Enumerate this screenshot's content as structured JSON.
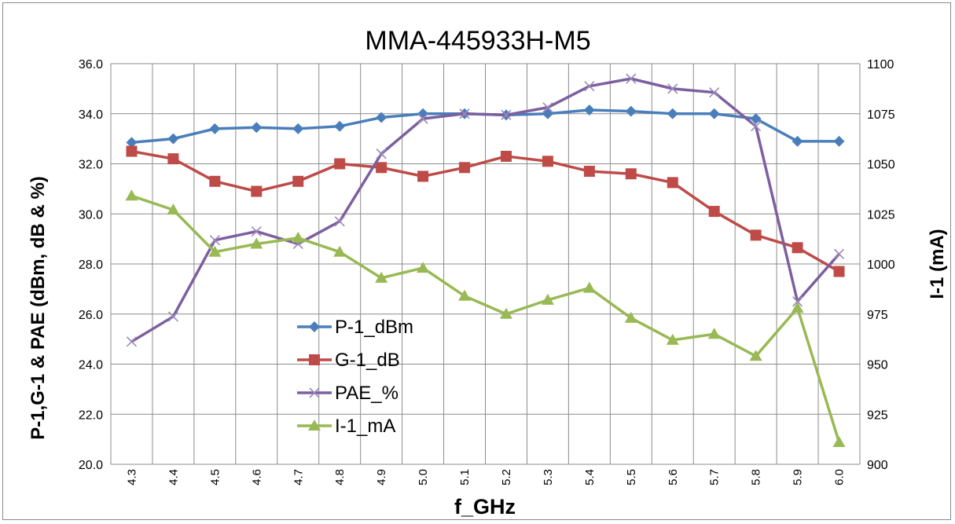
{
  "chart_data": {
    "type": "line",
    "title": "MMA-445933H-M5",
    "xlabel": "f_GHz",
    "ylabel_left": "P-1,G-1 & PAE (dBm, dB & %)",
    "ylabel_right": "I-1 (mA)",
    "x": [
      "4.3",
      "4.4",
      "4.5",
      "4.6",
      "4.7",
      "4.8",
      "4.9",
      "5.0",
      "5.1",
      "5.2",
      "5.3",
      "5.4",
      "5.5",
      "5.6",
      "5.7",
      "5.8",
      "5.9",
      "6.0"
    ],
    "ylim_left": [
      20,
      36
    ],
    "yticks_left": [
      "20.0",
      "22.0",
      "24.0",
      "26.0",
      "28.0",
      "30.0",
      "32.0",
      "34.0",
      "36.0"
    ],
    "ylim_right": [
      900,
      1100
    ],
    "yticks_right": [
      "900",
      "925",
      "950",
      "975",
      "1000",
      "1025",
      "1050",
      "1075",
      "1100"
    ],
    "grid": true,
    "legend_position": "center-left",
    "series": [
      {
        "name": "P-1_dBm",
        "axis": "left",
        "color": "#4a7ebb",
        "marker": "diamond",
        "values": [
          32.85,
          33.0,
          33.4,
          33.45,
          33.4,
          33.5,
          33.85,
          34.0,
          34.0,
          33.95,
          34.0,
          34.15,
          34.1,
          34.0,
          34.0,
          33.8,
          32.9,
          32.9
        ]
      },
      {
        "name": "G-1_dB",
        "axis": "left",
        "color": "#be4b48",
        "marker": "square",
        "values": [
          32.5,
          32.2,
          31.3,
          30.9,
          31.3,
          32.0,
          31.85,
          31.5,
          31.85,
          32.3,
          32.1,
          31.7,
          31.6,
          31.25,
          30.1,
          29.15,
          28.65,
          27.7
        ]
      },
      {
        "name": "PAE_%",
        "axis": "left",
        "color": "#7d5fa0",
        "marker": "x",
        "values": [
          24.9,
          25.9,
          28.95,
          29.3,
          28.8,
          29.7,
          32.4,
          33.8,
          34.0,
          33.95,
          34.25,
          35.1,
          35.4,
          35.0,
          34.85,
          33.5,
          26.5,
          28.4
        ]
      },
      {
        "name": "I-1_mA",
        "axis": "right",
        "color": "#98b954",
        "marker": "triangle",
        "values": [
          1034,
          1027,
          1006,
          1010,
          1013,
          1006,
          993,
          998,
          984,
          975,
          982,
          988,
          973,
          962,
          965,
          954,
          978,
          911
        ]
      }
    ]
  }
}
